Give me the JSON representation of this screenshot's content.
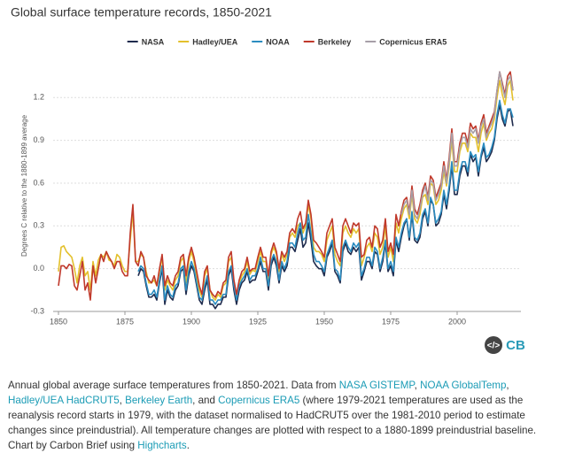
{
  "chart_data": {
    "type": "line",
    "title": "Global surface temperature records, 1850-2021",
    "ylabel": "Degrees C relative to the 1880-1899 average",
    "logo": "CB",
    "embed_icon": "</>",
    "legend": "top",
    "grid": true,
    "xlim": [
      1848,
      2024
    ],
    "ylim": [
      -0.3,
      1.4
    ],
    "xticks": [
      1850,
      1875,
      1900,
      1925,
      1950,
      1975,
      2000
    ],
    "yticks": [
      -0.3,
      {
        "value": 0,
        "label": "0.0"
      },
      0.3,
      0.6,
      0.9,
      1.2
    ],
    "x": [
      1850,
      1851,
      1852,
      1853,
      1854,
      1855,
      1856,
      1857,
      1858,
      1859,
      1860,
      1861,
      1862,
      1863,
      1864,
      1865,
      1866,
      1867,
      1868,
      1869,
      1870,
      1871,
      1872,
      1873,
      1874,
      1875,
      1876,
      1877,
      1878,
      1879,
      1880,
      1881,
      1882,
      1883,
      1884,
      1885,
      1886,
      1887,
      1888,
      1889,
      1890,
      1891,
      1892,
      1893,
      1894,
      1895,
      1896,
      1897,
      1898,
      1899,
      1900,
      1901,
      1902,
      1903,
      1904,
      1905,
      1906,
      1907,
      1908,
      1909,
      1910,
      1911,
      1912,
      1913,
      1914,
      1915,
      1916,
      1917,
      1918,
      1919,
      1920,
      1921,
      1922,
      1923,
      1924,
      1925,
      1926,
      1927,
      1928,
      1929,
      1930,
      1931,
      1932,
      1933,
      1934,
      1935,
      1936,
      1937,
      1938,
      1939,
      1940,
      1941,
      1942,
      1943,
      1944,
      1945,
      1946,
      1947,
      1948,
      1949,
      1950,
      1951,
      1952,
      1953,
      1954,
      1955,
      1956,
      1957,
      1958,
      1959,
      1960,
      1961,
      1962,
      1963,
      1964,
      1965,
      1966,
      1967,
      1968,
      1969,
      1970,
      1971,
      1972,
      1973,
      1974,
      1975,
      1976,
      1977,
      1978,
      1979,
      1980,
      1981,
      1982,
      1983,
      1984,
      1985,
      1986,
      1987,
      1988,
      1989,
      1990,
      1991,
      1992,
      1993,
      1994,
      1995,
      1996,
      1997,
      1998,
      1999,
      2000,
      2001,
      2002,
      2003,
      2004,
      2005,
      2006,
      2007,
      2008,
      2009,
      2010,
      2011,
      2012,
      2013,
      2014,
      2015,
      2016,
      2017,
      2018,
      2019,
      2020,
      2021
    ],
    "series": [
      {
        "name": "NASA",
        "color": "#1f2b4d",
        "values": [
          null,
          null,
          null,
          null,
          null,
          null,
          null,
          null,
          null,
          null,
          null,
          null,
          null,
          null,
          null,
          null,
          null,
          null,
          null,
          null,
          null,
          null,
          null,
          null,
          null,
          null,
          null,
          null,
          null,
          null,
          -0.05,
          0.0,
          -0.02,
          -0.12,
          -0.2,
          -0.2,
          -0.18,
          -0.22,
          -0.1,
          0.0,
          -0.25,
          -0.15,
          -0.2,
          -0.22,
          -0.15,
          -0.12,
          -0.02,
          0.0,
          -0.18,
          -0.05,
          0.02,
          -0.02,
          -0.12,
          -0.22,
          -0.25,
          -0.15,
          -0.08,
          -0.25,
          -0.25,
          -0.28,
          -0.25,
          -0.25,
          -0.2,
          -0.2,
          -0.05,
          0.0,
          -0.15,
          -0.25,
          -0.15,
          -0.1,
          -0.08,
          -0.02,
          -0.1,
          -0.08,
          -0.08,
          -0.02,
          0.05,
          -0.02,
          -0.02,
          -0.15,
          0.02,
          0.08,
          0.02,
          -0.1,
          0.02,
          -0.02,
          0.02,
          0.15,
          0.15,
          0.12,
          0.2,
          0.28,
          0.15,
          0.18,
          0.32,
          0.2,
          0.05,
          0.02,
          0.0,
          0.0,
          -0.05,
          0.08,
          0.12,
          0.18,
          -0.02,
          -0.05,
          -0.1,
          0.12,
          0.18,
          0.12,
          0.1,
          0.15,
          0.12,
          0.15,
          -0.08,
          -0.02,
          0.05,
          0.05,
          0.0,
          0.12,
          0.1,
          -0.02,
          0.05,
          0.18,
          -0.02,
          0.02,
          -0.05,
          0.2,
          0.12,
          0.22,
          0.3,
          0.35,
          0.2,
          0.38,
          0.2,
          0.18,
          0.22,
          0.35,
          0.4,
          0.3,
          0.48,
          0.45,
          0.3,
          0.32,
          0.38,
          0.52,
          0.42,
          0.55,
          0.72,
          0.52,
          0.52,
          0.65,
          0.72,
          0.72,
          0.65,
          0.8,
          0.75,
          0.78,
          0.65,
          0.78,
          0.85,
          0.75,
          0.78,
          0.82,
          0.9,
          1.05,
          1.15,
          1.05,
          1.0,
          1.1,
          1.12,
          1.0
        ]
      },
      {
        "name": "Hadley/UEA",
        "color": "#e3c02c",
        "values": [
          -0.02,
          0.15,
          0.16,
          0.12,
          0.1,
          0.08,
          0.0,
          -0.1,
          0.02,
          0.08,
          -0.05,
          -0.02,
          -0.15,
          0.05,
          -0.05,
          0.06,
          0.1,
          0.08,
          0.12,
          0.06,
          0.05,
          0.02,
          0.1,
          0.08,
          0.02,
          -0.02,
          -0.02,
          0.2,
          0.4,
          0.05,
          0.05,
          0.1,
          0.08,
          -0.02,
          -0.1,
          -0.1,
          -0.08,
          -0.12,
          -0.02,
          0.08,
          -0.15,
          -0.08,
          -0.12,
          -0.15,
          -0.08,
          -0.05,
          0.05,
          0.08,
          -0.1,
          0.05,
          0.12,
          0.05,
          -0.05,
          -0.15,
          -0.2,
          -0.05,
          0.0,
          -0.15,
          -0.2,
          -0.22,
          -0.18,
          -0.2,
          -0.12,
          -0.1,
          0.05,
          0.08,
          -0.1,
          -0.2,
          -0.1,
          -0.05,
          -0.02,
          0.05,
          -0.04,
          -0.01,
          -0.02,
          0.05,
          0.12,
          0.05,
          0.05,
          -0.08,
          0.1,
          0.15,
          0.1,
          -0.02,
          0.1,
          0.05,
          0.1,
          0.22,
          0.25,
          0.22,
          0.3,
          0.32,
          0.25,
          0.3,
          0.45,
          0.35,
          0.15,
          0.12,
          0.12,
          0.1,
          0.05,
          0.2,
          0.25,
          0.3,
          0.1,
          0.05,
          0.02,
          0.25,
          0.3,
          0.25,
          0.22,
          0.28,
          0.25,
          0.28,
          0.02,
          0.08,
          0.15,
          0.18,
          0.12,
          0.25,
          0.22,
          0.1,
          0.15,
          0.3,
          0.08,
          0.15,
          0.05,
          0.32,
          0.25,
          0.35,
          0.42,
          0.45,
          0.35,
          0.52,
          0.35,
          0.32,
          0.38,
          0.5,
          0.52,
          0.45,
          0.6,
          0.58,
          0.45,
          0.48,
          0.55,
          0.68,
          0.58,
          0.72,
          0.9,
          0.68,
          0.68,
          0.82,
          0.88,
          0.88,
          0.82,
          0.95,
          0.92,
          0.92,
          0.82,
          0.95,
          1.02,
          0.9,
          0.95,
          0.98,
          1.05,
          1.2,
          1.32,
          1.22,
          1.15,
          1.28,
          1.32,
          1.18
        ]
      },
      {
        "name": "NOAA",
        "color": "#2b8cc0",
        "values": [
          null,
          null,
          null,
          null,
          null,
          null,
          null,
          null,
          null,
          null,
          null,
          null,
          null,
          null,
          null,
          null,
          null,
          null,
          null,
          null,
          null,
          null,
          null,
          null,
          null,
          null,
          null,
          null,
          null,
          null,
          -0.02,
          0.02,
          0.0,
          -0.1,
          -0.18,
          -0.18,
          -0.15,
          -0.2,
          -0.08,
          0.02,
          -0.22,
          -0.12,
          -0.18,
          -0.2,
          -0.12,
          -0.1,
          0.0,
          0.02,
          -0.15,
          -0.02,
          0.05,
          0.0,
          -0.1,
          -0.2,
          -0.22,
          -0.12,
          -0.05,
          -0.22,
          -0.22,
          -0.25,
          -0.22,
          -0.22,
          -0.18,
          -0.18,
          -0.02,
          0.02,
          -0.12,
          -0.22,
          -0.12,
          -0.08,
          -0.05,
          0.0,
          -0.08,
          -0.05,
          -0.05,
          0.0,
          0.08,
          0.0,
          0.0,
          -0.12,
          0.05,
          0.1,
          0.05,
          -0.08,
          0.05,
          0.0,
          0.05,
          0.18,
          0.18,
          0.15,
          0.25,
          0.32,
          0.2,
          0.22,
          0.38,
          0.25,
          0.1,
          0.05,
          0.05,
          0.02,
          -0.02,
          0.1,
          0.15,
          0.2,
          0.0,
          -0.02,
          -0.08,
          0.15,
          0.2,
          0.15,
          0.12,
          0.18,
          0.15,
          0.18,
          -0.05,
          0.0,
          0.08,
          0.08,
          0.02,
          0.15,
          0.12,
          0.0,
          0.08,
          0.2,
          0.0,
          0.05,
          -0.02,
          0.22,
          0.15,
          0.25,
          0.32,
          0.35,
          0.22,
          0.4,
          0.22,
          0.2,
          0.25,
          0.38,
          0.42,
          0.32,
          0.5,
          0.45,
          0.32,
          0.35,
          0.4,
          0.55,
          0.45,
          0.58,
          0.75,
          0.55,
          0.55,
          0.68,
          0.75,
          0.75,
          0.68,
          0.82,
          0.78,
          0.8,
          0.68,
          0.8,
          0.88,
          0.78,
          0.8,
          0.85,
          0.92,
          1.08,
          1.18,
          1.08,
          1.02,
          1.12,
          1.12,
          1.06
        ]
      },
      {
        "name": "Berkeley",
        "color": "#c0392b",
        "values": [
          -0.12,
          0.02,
          0.02,
          0.0,
          0.03,
          0.02,
          -0.12,
          -0.15,
          -0.05,
          0.05,
          -0.15,
          -0.1,
          -0.22,
          0.02,
          -0.1,
          0.0,
          0.1,
          0.05,
          0.12,
          0.08,
          0.05,
          0.0,
          0.05,
          0.05,
          -0.02,
          -0.05,
          -0.05,
          0.25,
          0.45,
          0.05,
          0.02,
          0.12,
          0.08,
          -0.05,
          -0.08,
          -0.1,
          -0.05,
          -0.12,
          0.0,
          0.1,
          -0.12,
          -0.05,
          -0.1,
          -0.12,
          -0.05,
          -0.02,
          0.08,
          0.1,
          -0.05,
          0.08,
          0.15,
          0.08,
          -0.02,
          -0.12,
          -0.18,
          -0.02,
          0.02,
          -0.15,
          -0.18,
          -0.2,
          -0.16,
          -0.18,
          -0.1,
          -0.08,
          0.08,
          0.12,
          -0.08,
          -0.18,
          -0.08,
          -0.02,
          0.0,
          0.08,
          -0.02,
          0.0,
          0.0,
          0.08,
          0.15,
          0.08,
          0.08,
          -0.05,
          0.12,
          0.18,
          0.12,
          0.0,
          0.12,
          0.08,
          0.12,
          0.25,
          0.28,
          0.25,
          0.35,
          0.4,
          0.28,
          0.32,
          0.48,
          0.38,
          0.2,
          0.18,
          0.15,
          0.12,
          0.08,
          0.25,
          0.3,
          0.35,
          0.15,
          0.1,
          0.05,
          0.3,
          0.35,
          0.3,
          0.25,
          0.32,
          0.3,
          0.32,
          0.08,
          0.1,
          0.2,
          0.22,
          0.15,
          0.3,
          0.28,
          0.15,
          0.2,
          0.35,
          0.12,
          0.18,
          0.1,
          0.38,
          0.3,
          0.4,
          0.48,
          0.5,
          0.4,
          0.58,
          0.42,
          0.38,
          0.45,
          0.55,
          0.6,
          0.5,
          0.65,
          0.62,
          0.5,
          0.55,
          0.6,
          0.75,
          0.62,
          0.78,
          0.98,
          0.75,
          0.75,
          0.88,
          0.95,
          0.95,
          0.88,
          1.02,
          0.98,
          1.0,
          0.9,
          1.02,
          1.08,
          0.95,
          1.0,
          1.05,
          1.1,
          1.25,
          1.38,
          1.3,
          1.22,
          1.35,
          1.38,
          1.25
        ]
      },
      {
        "name": "Copernicus ERA5",
        "color": "#a79fa8",
        "values": [
          null,
          null,
          null,
          null,
          null,
          null,
          null,
          null,
          null,
          null,
          null,
          null,
          null,
          null,
          null,
          null,
          null,
          null,
          null,
          null,
          null,
          null,
          null,
          null,
          null,
          null,
          null,
          null,
          null,
          null,
          null,
          null,
          null,
          null,
          null,
          null,
          null,
          null,
          null,
          null,
          null,
          null,
          null,
          null,
          null,
          null,
          null,
          null,
          null,
          null,
          null,
          null,
          null,
          null,
          null,
          null,
          null,
          null,
          null,
          null,
          null,
          null,
          null,
          null,
          null,
          null,
          null,
          null,
          null,
          null,
          null,
          null,
          null,
          null,
          null,
          null,
          null,
          null,
          null,
          null,
          null,
          null,
          null,
          null,
          null,
          null,
          null,
          null,
          null,
          null,
          null,
          null,
          null,
          null,
          null,
          null,
          null,
          null,
          null,
          null,
          null,
          null,
          null,
          null,
          null,
          null,
          null,
          null,
          null,
          null,
          null,
          null,
          null,
          null,
          null,
          null,
          null,
          null,
          null,
          null,
          null,
          null,
          null,
          null,
          null,
          null,
          null,
          null,
          null,
          0.38,
          0.45,
          0.48,
          0.38,
          0.55,
          0.38,
          0.35,
          0.42,
          0.52,
          0.58,
          0.48,
          0.62,
          0.6,
          0.48,
          0.52,
          0.58,
          0.72,
          0.6,
          0.75,
          0.95,
          0.72,
          0.72,
          0.85,
          0.92,
          0.92,
          0.85,
          0.98,
          0.95,
          0.98,
          0.88,
          1.0,
          1.05,
          0.92,
          0.98,
          1.02,
          1.08,
          1.25,
          1.38,
          1.28,
          1.2,
          1.32,
          1.35,
          1.25
        ]
      }
    ],
    "caption": [
      {
        "text": "Annual global average surface temperatures from 1850-2021. Data from "
      },
      {
        "text": "NASA GISTEMP",
        "link": true
      },
      {
        "text": ", "
      },
      {
        "text": "NOAA GlobalTemp",
        "link": true
      },
      {
        "text": ", "
      },
      {
        "text": "Hadley/UEA HadCRUT5",
        "link": true
      },
      {
        "text": ", "
      },
      {
        "text": "Berkeley Earth",
        "link": true
      },
      {
        "text": ", and "
      },
      {
        "text": "Copernicus ERA5",
        "link": true
      },
      {
        "text": " (where 1979-2021 temperatures are used as the reanalysis record starts in 1979, with the dataset normalised to HadCRUT5 over the 1981-2010 period to estimate changes since preindustrial). All temperature changes are plotted with respect to a 1880-1899 preindustrial baseline. Chart by Carbon Brief using "
      },
      {
        "text": "Highcharts",
        "link": true
      },
      {
        "text": "."
      }
    ]
  }
}
